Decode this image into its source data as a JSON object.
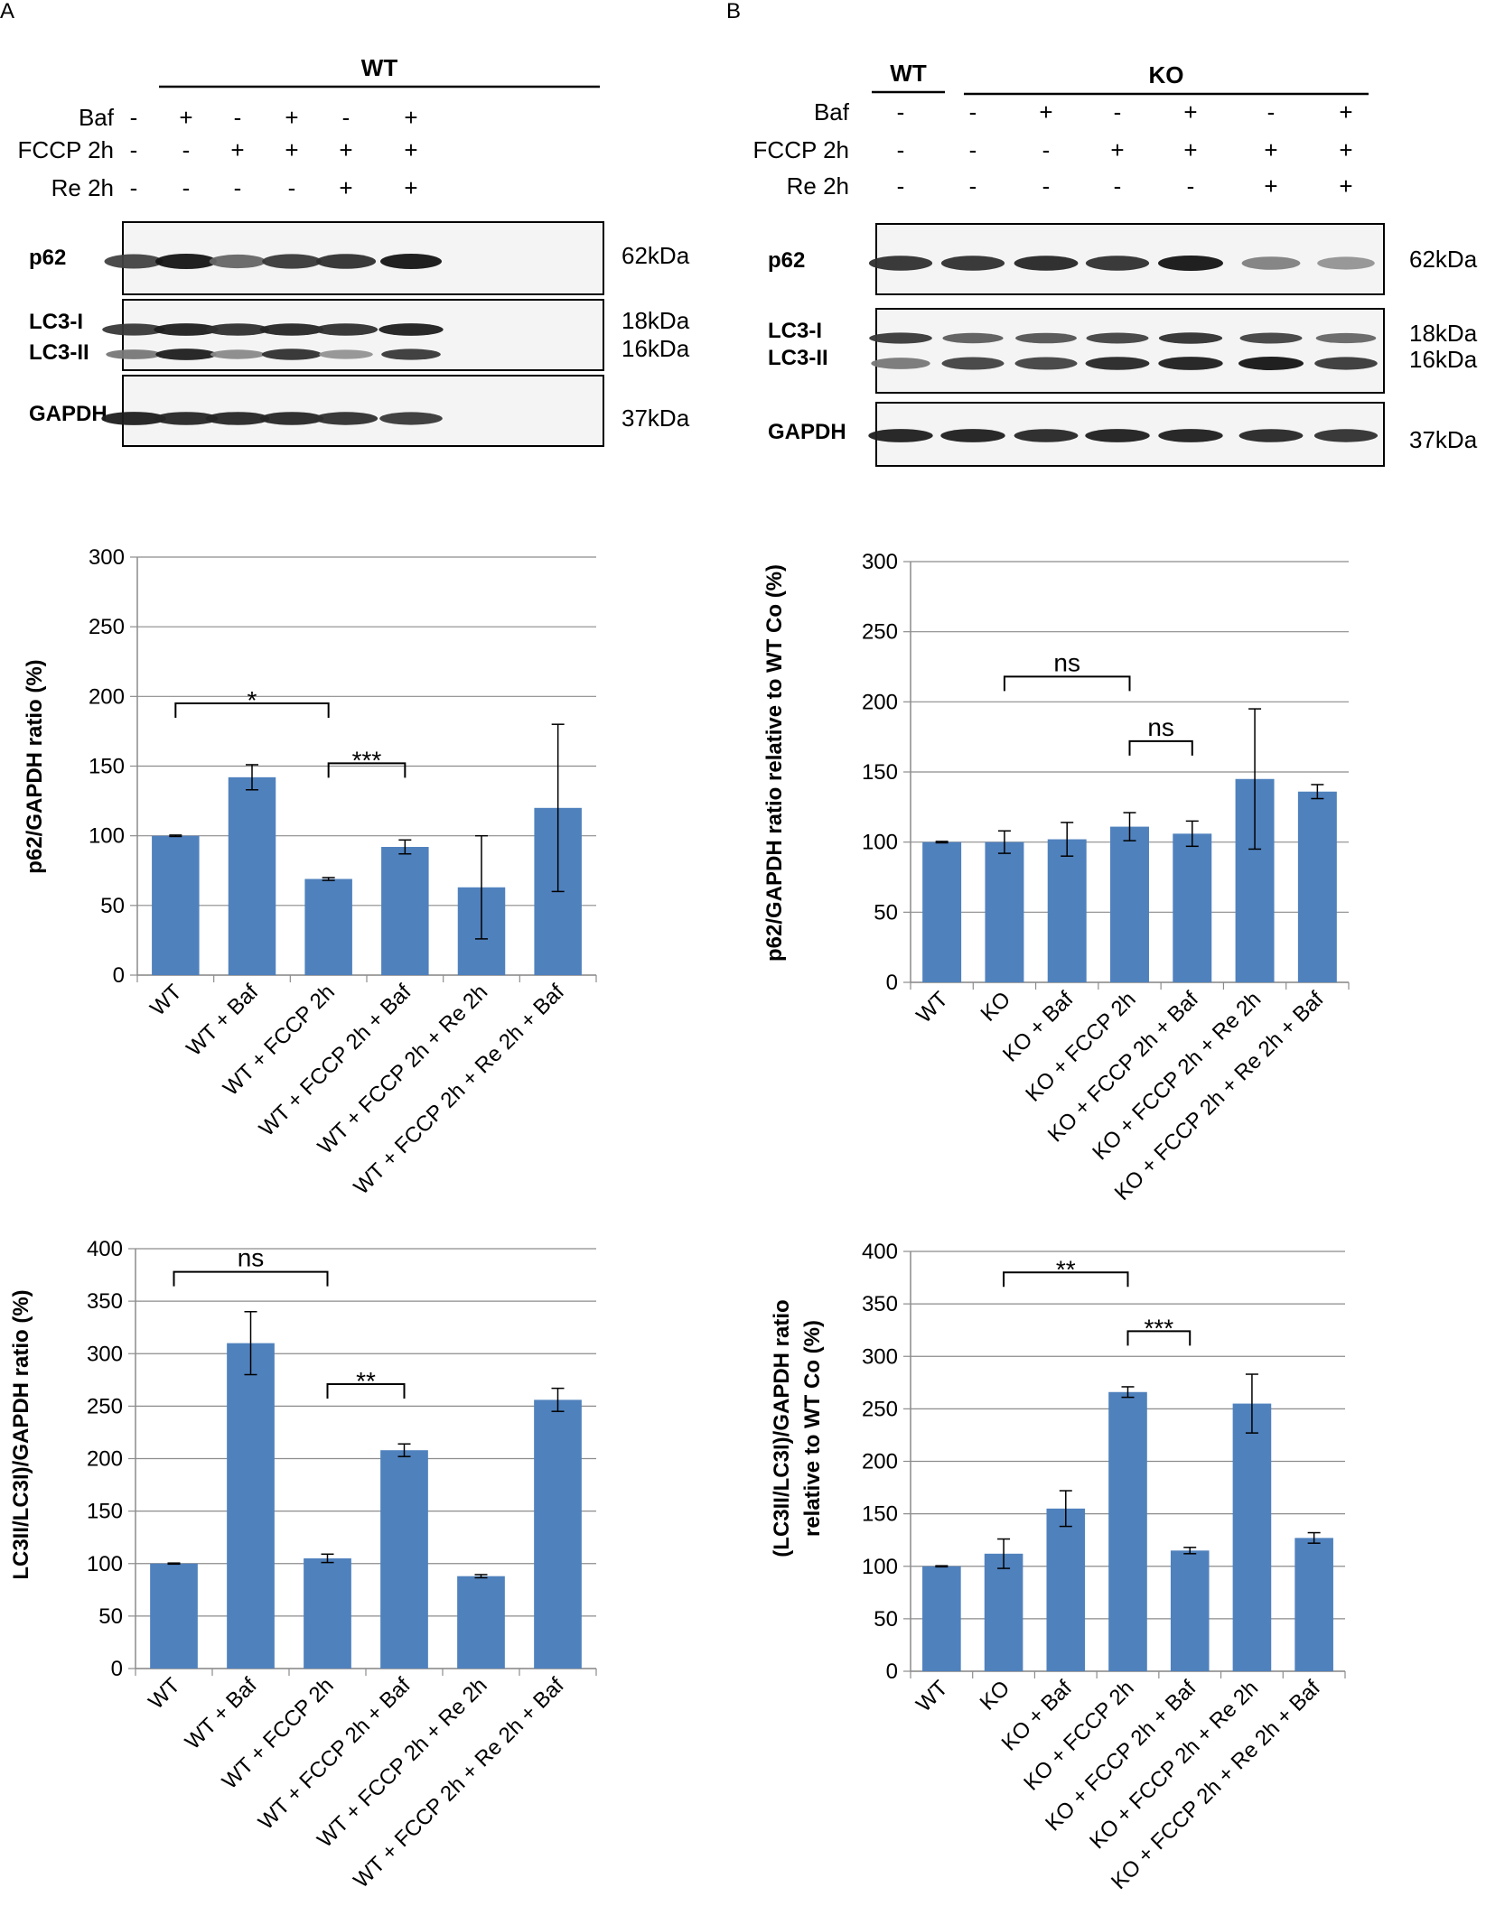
{
  "panels": [
    {
      "letter": "A",
      "blot": {
        "group_labels": [
          {
            "text": "WT",
            "span": [
              0,
              5
            ]
          }
        ],
        "conditions": [
          {
            "name": "Baf",
            "signs": [
              "-",
              "+",
              "-",
              "+",
              "-",
              "+"
            ]
          },
          {
            "name": "FCCP 2h",
            "signs": [
              "-",
              "-",
              "+",
              "+",
              "+",
              "+"
            ]
          },
          {
            "name": "Re 2h",
            "signs": [
              "-",
              "-",
              "-",
              "-",
              "+",
              "+"
            ]
          }
        ],
        "rows": [
          {
            "labels": [
              "p62"
            ],
            "markers": [
              "62kDa"
            ]
          },
          {
            "labels": [
              "LC3-I",
              "LC3-II"
            ],
            "markers": [
              "18kDa",
              "16kDa"
            ]
          },
          {
            "labels": [
              "GAPDH"
            ],
            "markers": [
              "37kDa"
            ]
          }
        ]
      }
    },
    {
      "letter": "B",
      "blot": {
        "group_labels": [
          {
            "text": "WT",
            "span": [
              0,
              0
            ]
          },
          {
            "text": "KO",
            "span": [
              1,
              6
            ]
          }
        ],
        "conditions": [
          {
            "name": "Baf",
            "signs": [
              "-",
              "-",
              "+",
              "-",
              "+",
              "-",
              "+"
            ]
          },
          {
            "name": "FCCP 2h",
            "signs": [
              "-",
              "-",
              "-",
              "+",
              "+",
              "+",
              "+"
            ]
          },
          {
            "name": "Re 2h",
            "signs": [
              "-",
              "-",
              "-",
              "-",
              "-",
              "+",
              "+"
            ]
          }
        ],
        "rows": [
          {
            "labels": [
              "p62"
            ],
            "markers": [
              "62kDa"
            ]
          },
          {
            "labels": [
              "LC3-I",
              "LC3-II"
            ],
            "markers": [
              "18kDa",
              "16kDa"
            ]
          },
          {
            "labels": [
              "GAPDH"
            ],
            "markers": [
              "37kDa"
            ]
          }
        ]
      }
    }
  ],
  "chart_data": [
    {
      "type": "bar",
      "ylabel_lines": [
        "p62/GAPDH ratio (%)"
      ],
      "ylim": [
        0,
        300
      ],
      "yticks": [
        0,
        50,
        100,
        150,
        200,
        250,
        300
      ],
      "grid": true,
      "categories": [
        "WT",
        "WT + Baf",
        "WT + FCCP 2h",
        "WT + FCCP 2h + Baf",
        "WT + FCCP 2h + Re 2h",
        "WT + FCCP 2h + Re 2h + Baf"
      ],
      "values": [
        100,
        142,
        69,
        92,
        63,
        120
      ],
      "errors": [
        0.5,
        9,
        1,
        5,
        37,
        60
      ],
      "color": "#4f81bd",
      "significance": [
        {
          "from": 0,
          "to": 2,
          "label": "*",
          "y": 195
        },
        {
          "from": 2,
          "to": 3,
          "label": "***",
          "y": 152
        }
      ]
    },
    {
      "type": "bar",
      "ylabel_lines": [
        "p62/GAPDH ratio relative to WT Co (%)"
      ],
      "ylim": [
        0,
        300
      ],
      "yticks": [
        0,
        50,
        100,
        150,
        200,
        250,
        300
      ],
      "grid": true,
      "categories": [
        "WT",
        "KO",
        "KO + Baf",
        "KO + FCCP 2h",
        "KO + FCCP 2h + Baf",
        "KO + FCCP 2h + Re 2h",
        "KO + FCCP 2h + Re 2h + Baf"
      ],
      "values": [
        100,
        100,
        102,
        111,
        106,
        145,
        136
      ],
      "errors": [
        0.5,
        8,
        12,
        10,
        9,
        50,
        5
      ],
      "color": "#4f81bd",
      "significance": [
        {
          "from": 1,
          "to": 3,
          "label": "ns",
          "y": 218
        },
        {
          "from": 3,
          "to": 4,
          "label": "ns",
          "y": 172
        }
      ]
    },
    {
      "type": "bar",
      "ylabel_lines": [
        "LC3II/LC3I)/GAPDH ratio (%)"
      ],
      "ylim": [
        0,
        400
      ],
      "yticks": [
        0,
        50,
        100,
        150,
        200,
        250,
        300,
        350,
        400
      ],
      "grid": true,
      "categories": [
        "WT",
        "WT + Baf",
        "WT + FCCP 2h",
        "WT + FCCP 2h + Baf",
        "WT + FCCP 2h + Re 2h",
        "WT + FCCP 2h + Re 2h + Baf"
      ],
      "values": [
        100,
        310,
        105,
        208,
        88,
        256
      ],
      "errors": [
        0.5,
        30,
        4,
        6,
        1.5,
        11
      ],
      "color": "#4f81bd",
      "significance": [
        {
          "from": 0,
          "to": 2,
          "label": "ns",
          "y": 378
        },
        {
          "from": 2,
          "to": 3,
          "label": "**",
          "y": 271
        }
      ]
    },
    {
      "type": "bar",
      "ylabel_lines": [
        "(LC3II/LC3I)/GAPDH ratio",
        "relative to WT Co (%)"
      ],
      "ylim": [
        0,
        400
      ],
      "yticks": [
        0,
        50,
        100,
        150,
        200,
        250,
        300,
        350,
        400
      ],
      "grid": true,
      "categories": [
        "WT",
        "KO",
        "KO + Baf",
        "KO + FCCP 2h",
        "KO + FCCP 2h + Baf",
        "KO + FCCP 2h + Re 2h",
        "KO + FCCP 2h + Re 2h + Baf"
      ],
      "values": [
        100,
        112,
        155,
        266,
        115,
        255,
        127
      ],
      "errors": [
        0.5,
        14,
        17,
        5,
        3,
        28,
        5
      ],
      "color": "#4f81bd",
      "significance": [
        {
          "from": 1,
          "to": 3,
          "label": "**",
          "y": 380
        },
        {
          "from": 3,
          "to": 4,
          "label": "***",
          "y": 324
        }
      ]
    }
  ]
}
